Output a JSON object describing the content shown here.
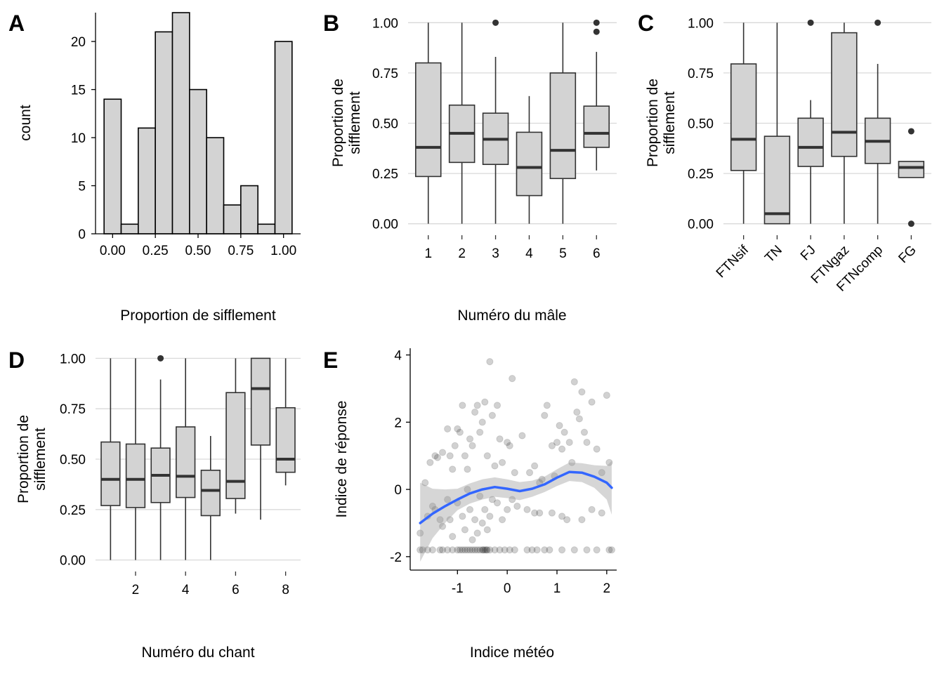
{
  "chart_data": [
    {
      "panel": "A",
      "type": "bar",
      "subtype": "histogram",
      "xlabel": "Proportion de sifflement",
      "ylabel": "count",
      "xlim": [
        -0.1,
        1.1
      ],
      "ylim": [
        0,
        23
      ],
      "bin_width": 0.1,
      "bin_centers": [
        0.0,
        0.1,
        0.2,
        0.3,
        0.4,
        0.5,
        0.6,
        0.7,
        0.8,
        0.9,
        1.0
      ],
      "counts": [
        14,
        1,
        11,
        21,
        23,
        15,
        10,
        3,
        5,
        1,
        20
      ],
      "x_ticks": [
        0,
        0.25,
        0.5,
        0.75,
        1
      ],
      "x_tick_labels": [
        "0.00",
        "0.25",
        "0.50",
        "0.75",
        "1.00"
      ],
      "y_ticks": [
        0,
        5,
        10,
        15,
        20
      ],
      "y_tick_labels": [
        "0",
        "5",
        "10",
        "15",
        "20"
      ],
      "fill": "#d3d3d3"
    },
    {
      "panel": "B",
      "type": "box",
      "xlabel": "Numéro du mâle",
      "ylabel": "Proportion de sifflement",
      "ylim": [
        -0.05,
        1.05
      ],
      "y_ticks": [
        0,
        0.25,
        0.5,
        0.75,
        1
      ],
      "y_tick_labels": [
        "0.00",
        "0.25",
        "0.50",
        "0.75",
        "1.00"
      ],
      "categories": [
        "1",
        "2",
        "3",
        "4",
        "5",
        "6"
      ],
      "boxes": [
        {
          "min": 0.0,
          "q1": 0.235,
          "median": 0.38,
          "q3": 0.8,
          "max": 1.0,
          "outliers": []
        },
        {
          "min": 0.0,
          "q1": 0.305,
          "median": 0.45,
          "q3": 0.59,
          "max": 1.0,
          "outliers": []
        },
        {
          "min": 0.0,
          "q1": 0.295,
          "median": 0.42,
          "q3": 0.55,
          "max": 0.83,
          "outliers": [
            1.0
          ]
        },
        {
          "min": 0.0,
          "q1": 0.14,
          "median": 0.28,
          "q3": 0.455,
          "max": 0.635,
          "outliers": []
        },
        {
          "min": 0.0,
          "q1": 0.225,
          "median": 0.365,
          "q3": 0.75,
          "max": 1.0,
          "outliers": []
        },
        {
          "min": 0.265,
          "q1": 0.38,
          "median": 0.45,
          "q3": 0.585,
          "max": 0.855,
          "outliers": [
            1.0,
            0.955
          ]
        }
      ]
    },
    {
      "panel": "C",
      "type": "box",
      "xlabel": "",
      "ylabel": "Proportion de sifflement",
      "ylim": [
        -0.05,
        1.05
      ],
      "y_ticks": [
        0,
        0.25,
        0.5,
        0.75,
        1
      ],
      "y_tick_labels": [
        "0.00",
        "0.25",
        "0.50",
        "0.75",
        "1.00"
      ],
      "categories": [
        "FTNsif",
        "TN",
        "FJ",
        "FTNgaz",
        "FTNcomp",
        "FG"
      ],
      "boxes": [
        {
          "min": 0.0,
          "q1": 0.265,
          "median": 0.42,
          "q3": 0.795,
          "max": 1.0,
          "outliers": []
        },
        {
          "min": 0.0,
          "q1": 0.0,
          "median": 0.05,
          "q3": 0.435,
          "max": 1.0,
          "outliers": []
        },
        {
          "min": 0.0,
          "q1": 0.285,
          "median": 0.38,
          "q3": 0.525,
          "max": 0.615,
          "outliers": [
            1.0
          ]
        },
        {
          "min": 0.0,
          "q1": 0.335,
          "median": 0.455,
          "q3": 0.95,
          "max": 1.0,
          "outliers": []
        },
        {
          "min": 0.0,
          "q1": 0.3,
          "median": 0.41,
          "q3": 0.525,
          "max": 0.795,
          "outliers": [
            1.0
          ]
        },
        {
          "min": 0.23,
          "q1": 0.23,
          "median": 0.28,
          "q3": 0.31,
          "max": 0.31,
          "outliers": [
            0.46,
            0.0
          ]
        }
      ]
    },
    {
      "panel": "D",
      "type": "box",
      "xlabel": "Numéro du chant",
      "ylabel": "Proportion de sifflement",
      "ylim": [
        -0.05,
        1.05
      ],
      "xlim": [
        0.4,
        8.6
      ],
      "y_ticks": [
        0,
        0.25,
        0.5,
        0.75,
        1
      ],
      "y_tick_labels": [
        "0.00",
        "0.25",
        "0.50",
        "0.75",
        "1.00"
      ],
      "x_ticks": [
        2,
        4,
        6,
        8
      ],
      "x_tick_labels": [
        "2",
        "4",
        "6",
        "8"
      ],
      "categories": [
        1,
        2,
        3,
        4,
        5,
        6,
        7,
        8
      ],
      "boxes": [
        {
          "min": 0.0,
          "q1": 0.27,
          "median": 0.4,
          "q3": 0.585,
          "max": 1.0,
          "outliers": []
        },
        {
          "min": 0.0,
          "q1": 0.26,
          "median": 0.4,
          "q3": 0.575,
          "max": 1.0,
          "outliers": []
        },
        {
          "min": 0.0,
          "q1": 0.285,
          "median": 0.42,
          "q3": 0.555,
          "max": 0.895,
          "outliers": [
            1.0
          ]
        },
        {
          "min": 0.0,
          "q1": 0.31,
          "median": 0.415,
          "q3": 0.66,
          "max": 1.0,
          "outliers": []
        },
        {
          "min": 0.0,
          "q1": 0.22,
          "median": 0.345,
          "q3": 0.445,
          "max": 0.615,
          "outliers": []
        },
        {
          "min": 0.23,
          "q1": 0.305,
          "median": 0.39,
          "q3": 0.83,
          "max": 1.0,
          "outliers": []
        },
        {
          "min": 0.2,
          "q1": 0.57,
          "median": 0.85,
          "q3": 1.0,
          "max": 1.0,
          "outliers": []
        },
        {
          "min": 0.37,
          "q1": 0.435,
          "median": 0.5,
          "q3": 0.755,
          "max": 1.0,
          "outliers": []
        }
      ]
    },
    {
      "panel": "E",
      "type": "scatter",
      "xlabel": "Indice météo",
      "ylabel": "Indice de réponse",
      "xlim": [
        -1.95,
        2.2
      ],
      "ylim": [
        -2.4,
        4.2
      ],
      "x_ticks": [
        -1,
        0,
        1,
        2
      ],
      "x_tick_labels": [
        "-1",
        "0",
        "1",
        "2"
      ],
      "y_ticks": [
        -2,
        0,
        2,
        4
      ],
      "y_tick_labels": [
        "-2",
        "0",
        "2",
        "4"
      ],
      "points": [
        [
          -1.75,
          -1.8
        ],
        [
          -1.7,
          -1.8
        ],
        [
          -1.6,
          -1.8
        ],
        [
          -1.5,
          -1.8
        ],
        [
          -1.35,
          -1.8
        ],
        [
          -1.3,
          -1.8
        ],
        [
          -1.2,
          -1.8
        ],
        [
          -1.1,
          -1.8
        ],
        [
          -1.0,
          -1.8
        ],
        [
          -0.95,
          -1.8
        ],
        [
          -0.9,
          -1.8
        ],
        [
          -0.85,
          -1.8
        ],
        [
          -0.8,
          -1.8
        ],
        [
          -0.75,
          -1.8
        ],
        [
          -0.7,
          -1.8
        ],
        [
          -0.65,
          -1.8
        ],
        [
          -0.6,
          -1.8
        ],
        [
          -0.55,
          -1.8
        ],
        [
          -0.5,
          -1.8
        ],
        [
          -0.48,
          -1.8
        ],
        [
          -0.45,
          -1.8
        ],
        [
          -0.42,
          -1.8
        ],
        [
          -0.4,
          -1.8
        ],
        [
          -0.35,
          -1.8
        ],
        [
          -0.25,
          -1.8
        ],
        [
          -0.15,
          -1.8
        ],
        [
          -0.05,
          -1.8
        ],
        [
          0.05,
          -1.8
        ],
        [
          0.15,
          -1.8
        ],
        [
          0.4,
          -1.8
        ],
        [
          0.5,
          -1.8
        ],
        [
          0.6,
          -1.8
        ],
        [
          0.75,
          -1.8
        ],
        [
          0.85,
          -1.8
        ],
        [
          1.1,
          -1.8
        ],
        [
          1.35,
          -1.8
        ],
        [
          1.6,
          -1.8
        ],
        [
          1.8,
          -1.8
        ],
        [
          2.05,
          -1.8
        ],
        [
          2.1,
          -1.8
        ],
        [
          -1.75,
          -1.3
        ],
        [
          -1.6,
          -0.8
        ],
        [
          -1.5,
          -0.5
        ],
        [
          -1.45,
          -0.6
        ],
        [
          -1.35,
          -0.9
        ],
        [
          -1.3,
          -1.1
        ],
        [
          -1.2,
          -0.3
        ],
        [
          -1.15,
          -0.9
        ],
        [
          -1.1,
          -1.4
        ],
        [
          -1.0,
          -0.4
        ],
        [
          -0.9,
          -0.8
        ],
        [
          -0.85,
          -1.2
        ],
        [
          -0.8,
          0.0
        ],
        [
          -0.75,
          -0.6
        ],
        [
          -0.7,
          -1.5
        ],
        [
          -0.65,
          -0.9
        ],
        [
          -0.6,
          -1.3
        ],
        [
          -0.55,
          -0.2
        ],
        [
          -0.5,
          -1.0
        ],
        [
          -0.45,
          -0.6
        ],
        [
          -0.4,
          -1.2
        ],
        [
          -0.35,
          -0.8
        ],
        [
          -0.3,
          -0.3
        ],
        [
          -0.2,
          -0.4
        ],
        [
          -0.1,
          -0.9
        ],
        [
          0.0,
          -0.6
        ],
        [
          0.1,
          -0.3
        ],
        [
          0.2,
          -0.5
        ],
        [
          0.4,
          -0.6
        ],
        [
          0.55,
          -0.7
        ],
        [
          0.65,
          -0.7
        ],
        [
          0.9,
          -0.7
        ],
        [
          1.1,
          -0.8
        ],
        [
          1.2,
          -0.9
        ],
        [
          1.5,
          -0.9
        ],
        [
          1.7,
          -0.6
        ],
        [
          1.9,
          -0.7
        ],
        [
          -1.65,
          0.2
        ],
        [
          -1.55,
          0.8
        ],
        [
          -1.45,
          1.0
        ],
        [
          -1.4,
          0.95
        ],
        [
          -1.3,
          1.1
        ],
        [
          -1.2,
          1.8
        ],
        [
          -1.15,
          1.0
        ],
        [
          -1.1,
          0.6
        ],
        [
          -1.05,
          1.3
        ],
        [
          -1.0,
          1.8
        ],
        [
          -0.95,
          1.7
        ],
        [
          -0.9,
          2.5
        ],
        [
          -0.85,
          1.0
        ],
        [
          -0.8,
          0.6
        ],
        [
          -0.75,
          1.5
        ],
        [
          -0.7,
          1.3
        ],
        [
          -0.65,
          2.3
        ],
        [
          -0.6,
          2.5
        ],
        [
          -0.55,
          1.7
        ],
        [
          -0.5,
          2.0
        ],
        [
          -0.45,
          2.6
        ],
        [
          -0.4,
          1.0
        ],
        [
          -0.35,
          3.8
        ],
        [
          -0.3,
          2.2
        ],
        [
          -0.25,
          0.7
        ],
        [
          -0.2,
          2.5
        ],
        [
          -0.15,
          1.5
        ],
        [
          -0.1,
          0.8
        ],
        [
          0.0,
          1.4
        ],
        [
          0.05,
          1.3
        ],
        [
          0.1,
          3.3
        ],
        [
          0.15,
          0.5
        ],
        [
          0.3,
          1.6
        ],
        [
          0.45,
          0.5
        ],
        [
          0.55,
          0.7
        ],
        [
          0.65,
          0.2
        ],
        [
          0.75,
          2.2
        ],
        [
          0.8,
          2.5
        ],
        [
          0.9,
          1.3
        ],
        [
          1.0,
          1.4
        ],
        [
          1.05,
          1.9
        ],
        [
          1.1,
          1.2
        ],
        [
          1.15,
          1.7
        ],
        [
          1.25,
          1.4
        ],
        [
          1.35,
          3.2
        ],
        [
          1.4,
          2.3
        ],
        [
          1.45,
          2.1
        ],
        [
          1.5,
          2.9
        ],
        [
          1.55,
          1.7
        ],
        [
          1.6,
          1.4
        ],
        [
          1.7,
          2.6
        ],
        [
          1.8,
          1.2
        ],
        [
          1.9,
          0.5
        ],
        [
          2.0,
          2.8
        ],
        [
          2.05,
          0.8
        ],
        [
          0.7,
          0.3
        ],
        [
          1.3,
          0.8
        ],
        [
          0.95,
          0.4
        ]
      ],
      "smooth_line": {
        "x": [
          -1.75,
          -1.5,
          -1.25,
          -1.0,
          -0.75,
          -0.5,
          -0.25,
          0.0,
          0.25,
          0.5,
          0.75,
          1.0,
          1.25,
          1.5,
          1.75,
          2.0,
          2.1
        ],
        "y": [
          -1.0,
          -0.72,
          -0.5,
          -0.3,
          -0.12,
          0.0,
          0.07,
          0.02,
          -0.05,
          0.02,
          0.15,
          0.35,
          0.52,
          0.5,
          0.38,
          0.2,
          0.05
        ],
        "ci_lower": [
          -2.15,
          -1.45,
          -1.0,
          -0.62,
          -0.42,
          -0.3,
          -0.22,
          -0.26,
          -0.32,
          -0.22,
          -0.08,
          0.1,
          0.25,
          0.22,
          0.05,
          -0.3,
          -0.75
        ],
        "ci_upper": [
          0.2,
          0.02,
          0.0,
          0.02,
          0.18,
          0.3,
          0.36,
          0.3,
          0.22,
          0.26,
          0.38,
          0.6,
          0.8,
          0.78,
          0.72,
          0.7,
          0.85
        ]
      },
      "line_color": "#3366ff",
      "point_color": "#000000"
    }
  ]
}
